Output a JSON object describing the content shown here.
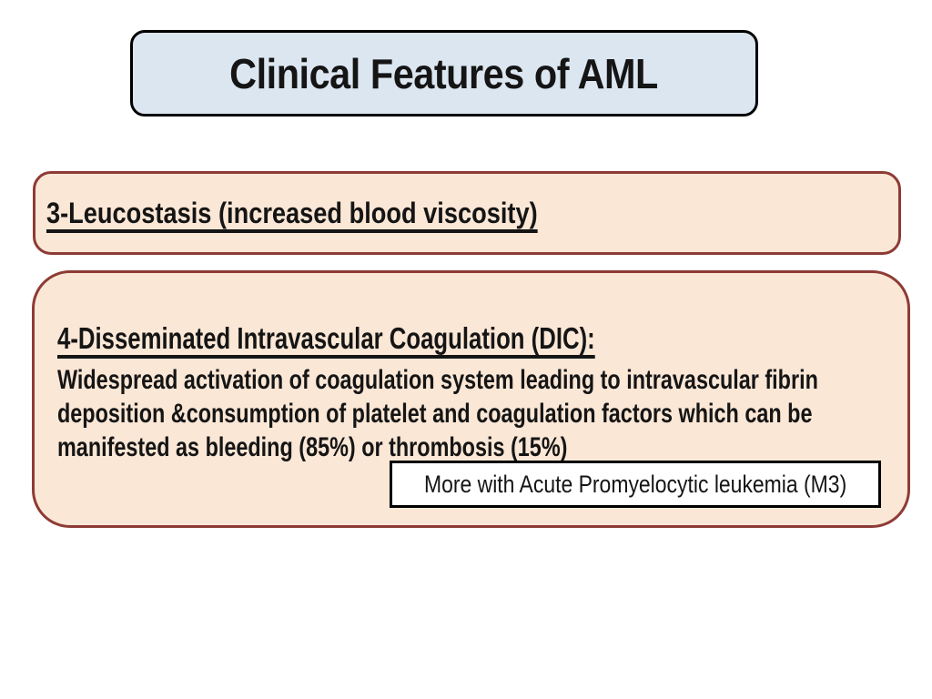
{
  "slide": {
    "title": "Clinical Features of AML",
    "section_leucostasis": {
      "heading": "3-Leucostasis (increased blood viscosity)"
    },
    "section_dic": {
      "heading": "4-Disseminated Intravascular Coagulation (DIC):",
      "body_lines": [
        "Widespread activation of coagulation system leading to intravascular fibrin",
        "deposition &consumption of platelet and coagulation factors which can be",
        "manifested as bleeding (85%) or thrombosis (15%)"
      ],
      "note": "More with Acute Promyelocytic leukemia (M3)"
    },
    "colors": {
      "title_fill": "#dce6f1",
      "title_border": "#000000",
      "box_fill": "#fbe7d6",
      "box_border": "#8e3b35",
      "note_fill": "#ffffff",
      "note_border": "#000000",
      "text": "#151515"
    }
  }
}
